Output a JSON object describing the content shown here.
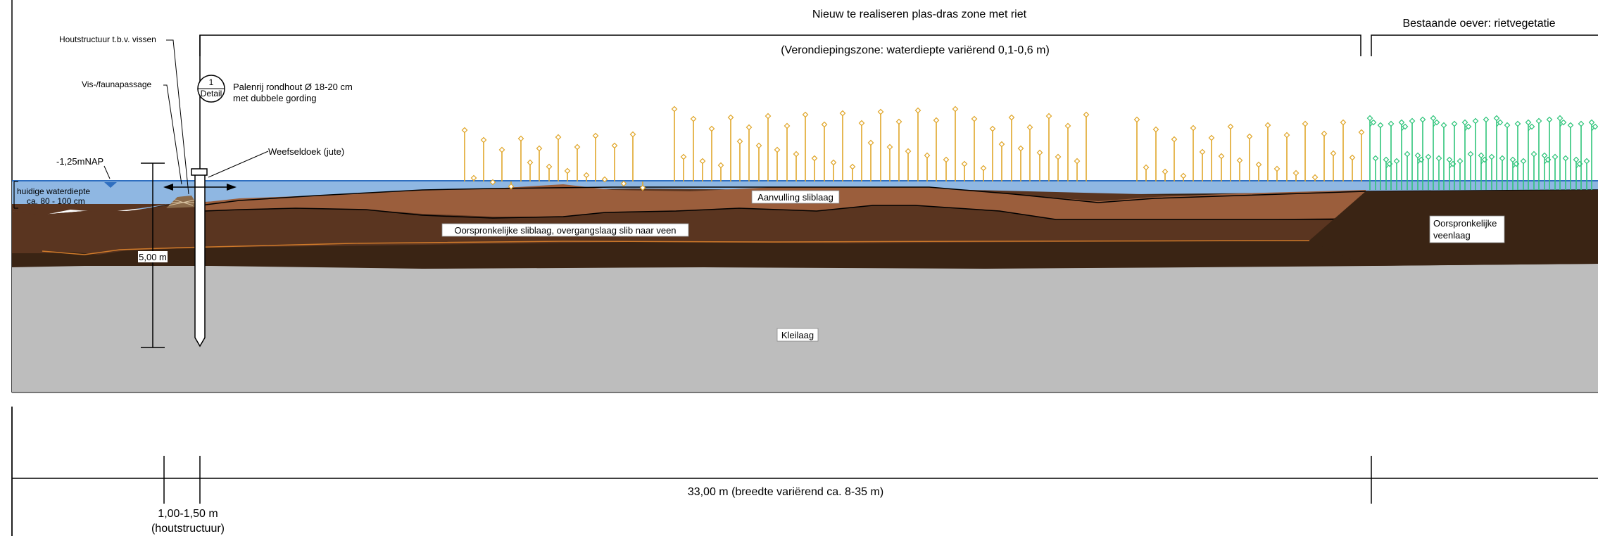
{
  "labels": {
    "zone_title": "Nieuw te realiseren plas-dras zone met riet",
    "existing_bank": "Bestaande oever: rietvegetatie",
    "shallow_zone": "(Verondiepingszone: waterdiepte variërend 0,1-0,6 m)",
    "wood_structure": "Houtstructuur t.b.v. vissen",
    "fish_passage": "Vis-/faunapassage",
    "detail_number": "1",
    "detail_word": "Detail",
    "pile_row_line1": "Palenrij rondhout Ø 18-20 cm",
    "pile_row_line2": "met dubbele gording",
    "water_level": "-1,25mNAP",
    "geotextile": "Weefseldoek (jute)",
    "current_depth_line1": "huidige waterdiepte",
    "current_depth_line2": "ca. 80 - 100 cm",
    "pile_length": "5,00 m",
    "sludge_fill": "Aanvulling sliblaag",
    "original_sludge": "Oorspronkelijke sliblaag, overgangslaag slib naar veen",
    "original_peat_line1": "Oorspronkelijke",
    "original_peat_line2": "veenlaag",
    "clay": "Kleilaag",
    "width_dimension": "33,00 m (breedte variërend ca. 8-35 m)",
    "wood_dim_line1": "1,00-1,50 m",
    "wood_dim_line2": "(houtstructuur)"
  },
  "colors": {
    "water": "#8fb7e2",
    "water_line": "#2f6fc0",
    "sludge_fill": "#9b5e3c",
    "sludge_original": "#5a3520",
    "peat": "#3a2414",
    "clay": "#bdbdbd",
    "reed_new": "#e0a62a",
    "reed_existing": "#2ec47a"
  }
}
